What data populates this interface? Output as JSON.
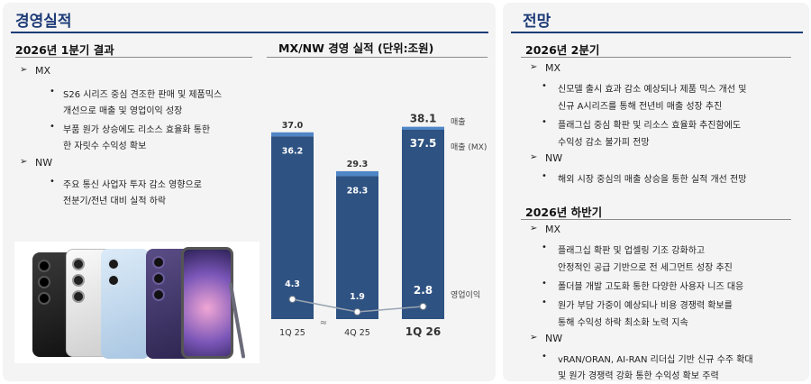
{
  "left": {
    "title": "경영실적",
    "section": "2026년 1분기 결과",
    "groups": [
      {
        "label": "MX",
        "bullets": [
          [
            "S26 시리즈 중심 견조한 판매 및 제품믹스",
            "개선으로 매출 및 영업이익 성장"
          ],
          [
            "부품 원가 상승에도 리소스 효율화 통한",
            "한 자릿수 수익성 확보"
          ]
        ]
      },
      {
        "label": "NW",
        "bullets": [
          [
            "주요 통신 사업자 투자 감소 영향으로",
            "전분기/전년 대비 실적 하락"
          ]
        ]
      }
    ]
  },
  "chart_data": {
    "type": "bar",
    "title": "MX/NW 경영 실적 (단위:조원)",
    "categories": [
      "1Q 25",
      "4Q 25",
      "1Q 26"
    ],
    "series": [
      {
        "name": "매출",
        "values": [
          37.0,
          29.3,
          38.1
        ]
      },
      {
        "name": "매출 (MX)",
        "values": [
          36.2,
          28.3,
          37.5
        ]
      },
      {
        "name": "영업이익",
        "values": [
          4.3,
          1.9,
          2.8
        ]
      }
    ],
    "value_labels": {
      "revenue": [
        "37.0",
        "29.3",
        "38.1"
      ],
      "mx": [
        "36.2",
        "28.3",
        "37.5"
      ],
      "op": [
        "4.3",
        "1.9",
        "2.8"
      ]
    },
    "axis_break_symbol": "≈",
    "colors": {
      "mx": "#2e5282",
      "nw": "#4f86c6",
      "line": "#9aa4b2"
    }
  },
  "right": {
    "title": "전망",
    "sections": [
      {
        "title": "2026년 2분기",
        "groups": [
          {
            "label": "MX",
            "bullets": [
              [
                "신모델 출시 효과 감소 예상되나 제품 믹스 개선 및",
                "신규 A시리즈를 통해 전년비 매출 성장 추진"
              ],
              [
                "플래그십 중심 확판 및 리소스 효율화 추진함에도",
                "수익성 감소 불가피 전망"
              ]
            ]
          },
          {
            "label": "NW",
            "bullets": [
              [
                "해외 시장 중심의 매출 상승을 통한 실적 개선 전망"
              ]
            ]
          }
        ]
      },
      {
        "title": "2026년 하반기",
        "groups": [
          {
            "label": "MX",
            "bullets": [
              [
                "플래그십 확판 및 업셀링 기조 강화하고",
                "안정적인 공급 기반으로 전 세그먼트 성장 추진"
              ],
              [
                "폴더블 개발 고도화 통한 다양한 사용자 니즈 대응"
              ],
              [
                "원가 부담 가중이 예상되나 비용 경쟁력 확보를",
                "통해 수익성 하락 최소화 노력 지속"
              ]
            ]
          },
          {
            "label": "NW",
            "bullets": [
              [
                "vRAN/ORAN, AI-RAN 리더십 기반 신규 수주 확대",
                "및 원가 경쟁력 강화 통한 수익성 확보 주력"
              ]
            ]
          }
        ]
      }
    ]
  },
  "markers": {
    "tri": "➢",
    "dot": "•"
  }
}
